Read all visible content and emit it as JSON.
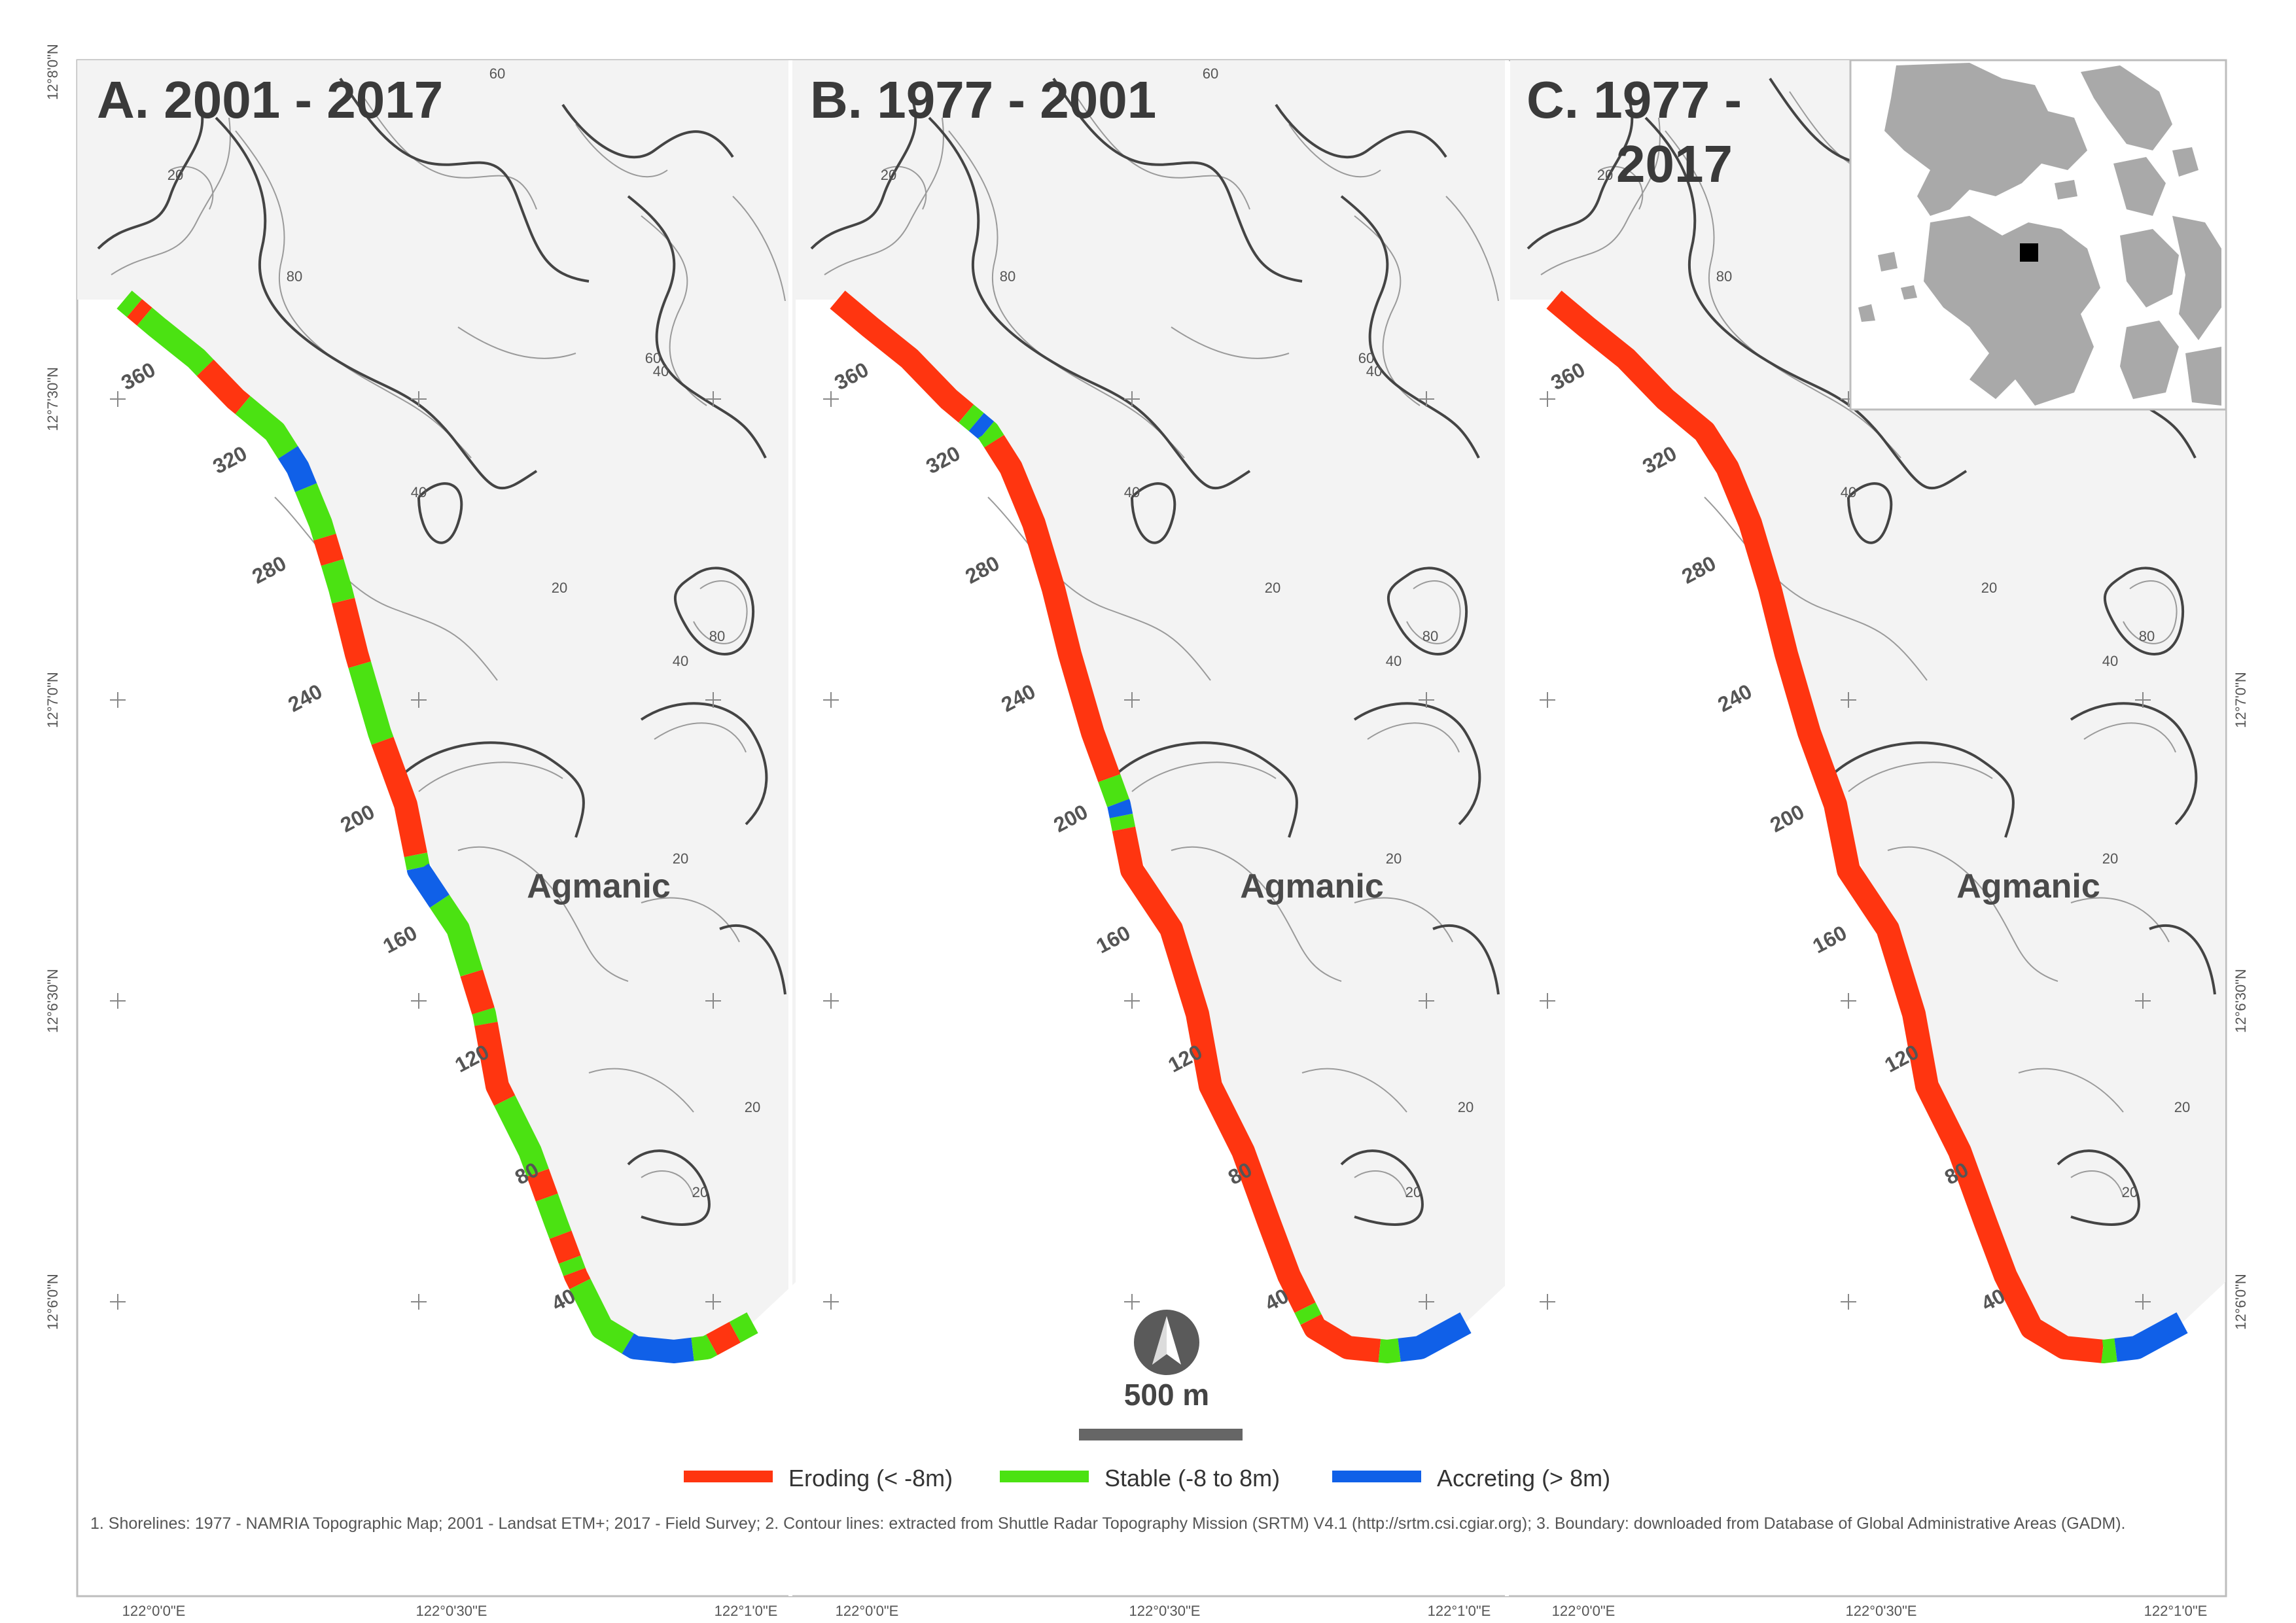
{
  "panels": [
    {
      "title_line1": "A. 2001 - 2017",
      "title_line2": "",
      "place": "Agmanic",
      "segments": [
        [
          0,
          0.01,
          "stable"
        ],
        [
          0.01,
          0.02,
          "eroding"
        ],
        [
          0.02,
          0.08,
          "stable"
        ],
        [
          0.08,
          0.12,
          "eroding"
        ],
        [
          0.12,
          0.17,
          "stable"
        ],
        [
          0.17,
          0.2,
          "accreting"
        ],
        [
          0.2,
          0.24,
          "stable"
        ],
        [
          0.24,
          0.26,
          "eroding"
        ],
        [
          0.26,
          0.29,
          "stable"
        ],
        [
          0.29,
          0.34,
          "eroding"
        ],
        [
          0.34,
          0.4,
          "stable"
        ],
        [
          0.4,
          0.49,
          "eroding"
        ],
        [
          0.49,
          0.5,
          "stable"
        ],
        [
          0.5,
          0.53,
          "accreting"
        ],
        [
          0.53,
          0.59,
          "stable"
        ],
        [
          0.59,
          0.62,
          "eroding"
        ],
        [
          0.62,
          0.63,
          "stable"
        ],
        [
          0.63,
          0.69,
          "eroding"
        ],
        [
          0.69,
          0.75,
          "stable"
        ],
        [
          0.75,
          0.77,
          "eroding"
        ],
        [
          0.77,
          0.8,
          "stable"
        ],
        [
          0.8,
          0.82,
          "eroding"
        ],
        [
          0.82,
          0.83,
          "stable"
        ],
        [
          0.83,
          0.84,
          "eroding"
        ],
        [
          0.84,
          0.9,
          "stable"
        ],
        [
          0.9,
          0.95,
          "accreting"
        ],
        [
          0.95,
          0.965,
          "stable"
        ],
        [
          0.965,
          0.985,
          "eroding"
        ],
        [
          0.985,
          1,
          "stable"
        ]
      ]
    },
    {
      "title_line1": "B. 1977 - 2001",
      "title_line2": "",
      "place": "Agmanic",
      "segments": [
        [
          0,
          0.13,
          "eroding"
        ],
        [
          0.13,
          0.14,
          "stable"
        ],
        [
          0.14,
          0.15,
          "accreting"
        ],
        [
          0.15,
          0.16,
          "stable"
        ],
        [
          0.16,
          0.43,
          "eroding"
        ],
        [
          0.43,
          0.45,
          "stable"
        ],
        [
          0.45,
          0.46,
          "accreting"
        ],
        [
          0.46,
          0.47,
          "stable"
        ],
        [
          0.47,
          0.86,
          "eroding"
        ],
        [
          0.86,
          0.87,
          "stable"
        ],
        [
          0.87,
          0.93,
          "eroding"
        ],
        [
          0.93,
          0.945,
          "stable"
        ],
        [
          0.945,
          1,
          "accreting"
        ]
      ]
    },
    {
      "title_line1": "C. 1977 -",
      "title_line2": "2017",
      "place": "Agmanic",
      "segments": [
        [
          0,
          0.935,
          "eroding"
        ],
        [
          0.935,
          0.945,
          "stable"
        ],
        [
          0.945,
          1,
          "accreting"
        ]
      ]
    }
  ],
  "chainage_labels": [
    "360",
    "320",
    "280",
    "240",
    "200",
    "160",
    "120",
    "80",
    "40"
  ],
  "contour_labels": [
    "20",
    "40",
    "60",
    "80"
  ],
  "graticule": {
    "lat": [
      "12°8'0\"N",
      "12°7'30\"N",
      "12°7'0\"N",
      "12°6'30\"N",
      "12°6'0\"N"
    ],
    "lon": [
      "122°0'0\"E",
      "122°0'30\"E",
      "122°1'0\"E"
    ]
  },
  "scale": {
    "label": "500 m"
  },
  "north_arrow": {
    "icon": "north-arrow-icon"
  },
  "legend": [
    {
      "label": "Eroding (< -8m)",
      "color": "#ff3510"
    },
    {
      "label": "Stable (-8 to 8m)",
      "color": "#4be212"
    },
    {
      "label": "Accreting (> 8m)",
      "color": "#1060e8"
    }
  ],
  "colors": {
    "eroding": "#ff3510",
    "stable": "#4be212",
    "accreting": "#1060e8",
    "land": "#f3f3f3",
    "contour_major": "#444444",
    "contour_minor": "#9a9a9a",
    "inset_land": "#a9a9a9",
    "inset_marker": "#000000"
  },
  "notes": "1. Shorelines: 1977 - NAMRIA Topographic Map; 2001 - Landsat ETM+; 2017 - Field Survey; 2. Contour lines: extracted from Shuttle Radar Topography Mission (SRTM) V4.1 (http://srtm.csi.cgiar.org); 3. Boundary: downloaded from Database of Global Administrative Areas (GADM)."
}
